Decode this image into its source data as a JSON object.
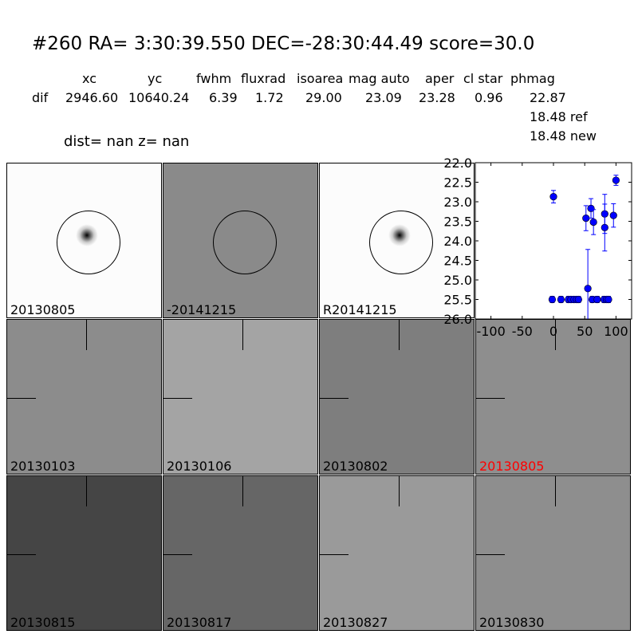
{
  "title": "#260   RA= 3:30:39.550 DEC=-28:30:44.49      score=30.0",
  "table": {
    "headers": [
      "xc",
      "yc",
      "fwhm",
      "fluxrad",
      "isoarea",
      "mag auto",
      "aper",
      "cl star",
      "phmag"
    ],
    "row_label": "dif",
    "values": [
      "2946.60",
      "10640.24",
      "6.39",
      "1.72",
      "29.00",
      "23.09",
      "23.28",
      "0.96",
      "22.87"
    ],
    "ref": "18.48 ref",
    "new": "18.48 new"
  },
  "dist_line": "dist=   nan      z=   nan",
  "panels": [
    {
      "label": "20130805",
      "bg": "#fcfcfc",
      "highlight": false
    },
    {
      "label": "-20141215",
      "bg": "#8a8a8a",
      "highlight": false
    },
    {
      "label": "R20141215",
      "bg": "#fcfcfc",
      "highlight": false
    },
    {
      "label": "20130103",
      "bg": "#8c8c8c",
      "highlight": false
    },
    {
      "label": "20130106",
      "bg": "#a4a4a4",
      "highlight": false
    },
    {
      "label": "20130802",
      "bg": "#7e7e7e",
      "highlight": false
    },
    {
      "label": "20130805",
      "bg": "#8e8e8e",
      "highlight": true,
      "color": "#ff0000"
    },
    {
      "label": "20130815",
      "bg": "#454545",
      "highlight": false
    },
    {
      "label": "20130817",
      "bg": "#666666",
      "highlight": false
    },
    {
      "label": "20130827",
      "bg": "#9a9a9a",
      "highlight": false
    },
    {
      "label": "20130830",
      "bg": "#8e8e8e",
      "highlight": false
    }
  ],
  "chart_data": {
    "type": "scatter",
    "xlim": [
      -125,
      125
    ],
    "ylim": [
      26.0,
      22.0
    ],
    "y_inverted": true,
    "xticks": [
      "-100",
      "-50",
      "0",
      "50",
      "100"
    ],
    "yticks": [
      "22.0",
      "22.5",
      "23.0",
      "23.5",
      "24.0",
      "24.5",
      "25.0",
      "25.5",
      "26.0"
    ],
    "marker_color": "#0000ff",
    "points": [
      {
        "x": 0,
        "y": 22.87,
        "err": 0.16
      },
      {
        "x": 100,
        "y": 22.45,
        "err": 0.13
      },
      {
        "x": 52,
        "y": 23.42,
        "err": 0.32
      },
      {
        "x": 60,
        "y": 23.17,
        "err": 0.25
      },
      {
        "x": 64,
        "y": 23.52,
        "err": 0.32
      },
      {
        "x": 82,
        "y": 23.31,
        "err": 0.5
      },
      {
        "x": 82,
        "y": 23.66,
        "err": 0.6
      },
      {
        "x": 96,
        "y": 23.35,
        "err": 0.3
      },
      {
        "x": 55,
        "y": 25.22,
        "err": 1.0
      },
      {
        "x": -2,
        "y": 25.5,
        "err": 0.08
      },
      {
        "x": 12,
        "y": 25.5,
        "err": 0.08
      },
      {
        "x": 24,
        "y": 25.5,
        "err": 0.08
      },
      {
        "x": 28,
        "y": 25.5,
        "err": 0.08
      },
      {
        "x": 33,
        "y": 25.5,
        "err": 0.08
      },
      {
        "x": 37,
        "y": 25.5,
        "err": 0.08
      },
      {
        "x": 40,
        "y": 25.5,
        "err": 0.08
      },
      {
        "x": 62,
        "y": 25.5,
        "err": 0.08
      },
      {
        "x": 70,
        "y": 25.5,
        "err": 0.08
      },
      {
        "x": 81,
        "y": 25.5,
        "err": 0.08
      },
      {
        "x": 85,
        "y": 25.5,
        "err": 0.08
      },
      {
        "x": 88,
        "y": 25.5,
        "err": 0.08
      }
    ]
  }
}
